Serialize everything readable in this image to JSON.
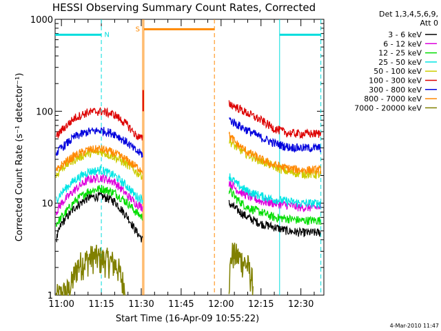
{
  "chart_data": {
    "type": "line",
    "title": "HESSI Observing Summary Count Rates, Corrected",
    "xlabel": "Start Time (16-Apr-09 10:55:22)",
    "ylabel": "Corrected Count Rate (s⁻¹ detector⁻¹)",
    "ylog": true,
    "ylim": [
      1,
      1000
    ],
    "xlim_minutes": [
      -2.37,
      98.63
    ],
    "x_tick_minutes": [
      0,
      15,
      30,
      45,
      60,
      75,
      90
    ],
    "x_tick_labels": [
      "11:00",
      "11:15",
      "11:30",
      "11:45",
      "12:00",
      "12:15",
      "12:30"
    ],
    "y_ticks": [
      1,
      10,
      100,
      1000
    ],
    "y_tick_labels": [
      "1",
      "10",
      "100",
      "1000"
    ],
    "legend_title": [
      "Det 1,3,4,5,6,9,",
      "Att 0"
    ],
    "legend_position": "right",
    "timestamp": "4-Mar-2010 11:47",
    "series": [
      {
        "name": "3 - 6 keV",
        "color": "#000000",
        "segments": [
          {
            "x": [
              -2,
              0,
              5,
              10,
              15,
              20,
              25,
              28,
              30.5
            ],
            "y": [
              4,
              6,
              9,
              11.5,
              12,
              10.5,
              7,
              5,
              4
            ]
          },
          {
            "x": [
              63,
              66,
              70,
              75,
              80,
              85,
              90,
              95,
              97.5
            ],
            "y": [
              10,
              8.5,
              7,
              6,
              5.5,
              5,
              4.8,
              4.8,
              4.8
            ]
          }
        ]
      },
      {
        "name": "6 - 12 keV",
        "color": "#dd00dd",
        "segments": [
          {
            "x": [
              -2,
              0,
              5,
              10,
              15,
              20,
              25,
              28,
              30.5
            ],
            "y": [
              8,
              10,
              14,
              18,
              19,
              17,
              12,
              10,
              9
            ]
          },
          {
            "x": [
              63,
              66,
              70,
              75,
              80,
              85,
              90,
              95,
              97.5
            ],
            "y": [
              17,
              14,
              12,
              10.5,
              10,
              9.5,
              9,
              9,
              9
            ]
          }
        ]
      },
      {
        "name": "12 - 25 keV",
        "color": "#00dd00",
        "segments": [
          {
            "x": [
              -2,
              0,
              5,
              10,
              15,
              20,
              25,
              28,
              30.5
            ],
            "y": [
              6,
              7,
              10.5,
              13.5,
              14.5,
              13,
              10,
              8,
              7
            ]
          },
          {
            "x": [
              63,
              66,
              70,
              75,
              80,
              85,
              90,
              95,
              97.5
            ],
            "y": [
              14,
              11,
              9,
              8,
              7,
              6.8,
              6.5,
              6.5,
              6.5
            ]
          }
        ]
      },
      {
        "name": "25 - 50 keV",
        "color": "#00e5e5",
        "segments": [
          {
            "x": [
              -2,
              0,
              5,
              10,
              15,
              20,
              25,
              28,
              30.5
            ],
            "y": [
              11,
              13,
              18,
              22,
              23,
              20,
              15,
              12,
              11
            ]
          },
          {
            "x": [
              63,
              66,
              70,
              75,
              80,
              85,
              90,
              95,
              97.5
            ],
            "y": [
              20,
              16,
              13.5,
              12,
              11,
              10.5,
              10,
              10,
              10
            ]
          }
        ]
      },
      {
        "name": "50 - 100 keV",
        "color": "#cccc00",
        "segments": [
          {
            "x": [
              -2,
              0,
              5,
              10,
              15,
              20,
              25,
              28,
              30.5
            ],
            "y": [
              20,
              24,
              30,
              35,
              36,
              32,
              26,
              22,
              20
            ]
          },
          {
            "x": [
              63,
              66,
              70,
              75,
              80,
              85,
              90,
              95,
              97.5
            ],
            "y": [
              48,
              40,
              34,
              29,
              25,
              22,
              21,
              20.5,
              20.5
            ]
          }
        ]
      },
      {
        "name": "100 - 300 keV",
        "color": "#dd0000",
        "segments": [
          {
            "x": [
              -2,
              0,
              5,
              10,
              15,
              20,
              25,
              28,
              30.5
            ],
            "y": [
              52,
              62,
              85,
              98,
              100,
              92,
              70,
              55,
              50
            ]
          },
          {
            "x": [
              63,
              66,
              70,
              75,
              80,
              85,
              90,
              95,
              97.5
            ],
            "y": [
              122,
              110,
              95,
              80,
              65,
              58,
              57,
              57,
              57
            ]
          }
        ]
      },
      {
        "name": "300 - 800 keV",
        "color": "#0000dd",
        "segments": [
          {
            "x": [
              -2,
              0,
              5,
              10,
              15,
              20,
              25,
              28,
              30.5
            ],
            "y": [
              35,
              40,
              53,
              60,
              62,
              57,
              45,
              37,
              34
            ]
          },
          {
            "x": [
              63,
              66,
              70,
              75,
              80,
              85,
              90,
              95,
              97.5
            ],
            "y": [
              82,
              72,
              62,
              52,
              45,
              41,
              40,
              40,
              40
            ]
          }
        ]
      },
      {
        "name": "800 - 7000 keV",
        "color": "#ff8800",
        "segments": [
          {
            "x": [
              -2,
              0,
              5,
              10,
              15,
              20,
              25,
              28,
              30.5
            ],
            "y": [
              22,
              26,
              33,
              38,
              39,
              35,
              29,
              25,
              23
            ]
          },
          {
            "x": [
              63,
              66,
              70,
              75,
              80,
              85,
              90,
              95,
              97.5
            ],
            "y": [
              55,
              44,
              36,
              30,
              26,
              24,
              23,
              23,
              23
            ]
          }
        ]
      },
      {
        "name": "7000 - 20000 keV",
        "color": "#808000",
        "segments": [
          {
            "x": [
              -2,
              3,
              6,
              9,
              12,
              15,
              18,
              21,
              24
            ],
            "y": [
              1,
              1.2,
              2.2,
              2.5,
              2.8,
              2.6,
              2.5,
              2.2,
              1.2
            ]
          },
          {
            "x": [
              63,
              64,
              66,
              68,
              70,
              72
            ],
            "y": [
              1.5,
              3.0,
              2.8,
              2.5,
              2.2,
              1.4
            ]
          }
        ]
      }
    ],
    "flag_bars": [
      {
        "label": "N",
        "color": "#00dddd",
        "x_start": -2.37,
        "x_end": 15,
        "y": 680
      },
      {
        "label": "",
        "color": "#00dddd",
        "x_start": 82,
        "x_end": 97.5,
        "y": 680
      },
      {
        "label": "S",
        "color": "#ff8800",
        "x_start": 31,
        "x_end": 57.5,
        "y": 780
      }
    ],
    "vertical_lines": [
      {
        "x": 15,
        "color": "#00dddd",
        "dashed": true
      },
      {
        "x": 30.5,
        "color": "#ff8800",
        "dashed": false
      },
      {
        "x": 31,
        "color": "#ff8800",
        "dashed": false
      },
      {
        "x": 57.5,
        "color": "#ff8800",
        "dashed": true
      },
      {
        "x": 82,
        "color": "#00dddd",
        "dashed": false
      },
      {
        "x": 97.5,
        "color": "#00dddd",
        "dashed": true
      }
    ],
    "spike": {
      "x": 30.7,
      "values": [
        100,
        170
      ],
      "color": "#dd0000"
    }
  }
}
